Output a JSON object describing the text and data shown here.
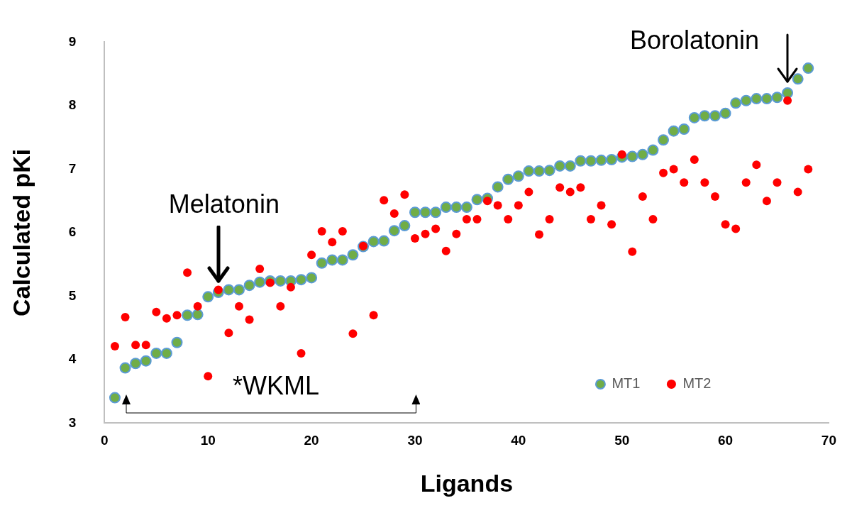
{
  "chart_data": {
    "type": "scatter",
    "xlabel": "Ligands",
    "ylabel": "Calculated pKi",
    "x": [
      1,
      2,
      3,
      4,
      5,
      6,
      7,
      8,
      9,
      10,
      11,
      12,
      13,
      14,
      15,
      16,
      17,
      18,
      19,
      20,
      21,
      22,
      23,
      24,
      25,
      26,
      27,
      28,
      29,
      30,
      31,
      32,
      33,
      34,
      35,
      36,
      37,
      38,
      39,
      40,
      41,
      42,
      43,
      44,
      45,
      46,
      47,
      48,
      49,
      50,
      51,
      52,
      53,
      54,
      55,
      56,
      57,
      58,
      59,
      60,
      61,
      62,
      63,
      64,
      65,
      66,
      67,
      68
    ],
    "series": [
      {
        "name": "MT1",
        "color": "#70ad47",
        "values": [
          3.4,
          3.87,
          3.94,
          3.98,
          4.1,
          4.1,
          4.27,
          4.7,
          4.71,
          4.99,
          5.06,
          5.1,
          5.1,
          5.17,
          5.22,
          5.24,
          5.24,
          5.24,
          5.26,
          5.29,
          5.52,
          5.57,
          5.57,
          5.65,
          5.78,
          5.86,
          5.87,
          6.03,
          6.11,
          6.32,
          6.32,
          6.32,
          6.4,
          6.4,
          6.4,
          6.52,
          6.54,
          6.72,
          6.84,
          6.89,
          6.97,
          6.97,
          6.98,
          7.05,
          7.05,
          7.13,
          7.13,
          7.14,
          7.15,
          7.19,
          7.2,
          7.23,
          7.3,
          7.46,
          7.6,
          7.63,
          7.81,
          7.84,
          7.84,
          7.88,
          8.04,
          8.08,
          8.11,
          8.11,
          8.13,
          8.2,
          8.42,
          8.59
        ]
      },
      {
        "name": "MT2",
        "color": "#ff0000",
        "values": [
          4.21,
          4.67,
          4.23,
          4.23,
          4.75,
          4.65,
          4.7,
          5.37,
          4.84,
          3.74,
          5.1,
          4.42,
          4.84,
          4.63,
          5.43,
          5.21,
          4.84,
          5.14,
          4.1,
          5.65,
          6.02,
          5.85,
          6.02,
          4.41,
          5.79,
          4.7,
          6.51,
          6.3,
          6.6,
          5.91,
          5.98,
          6.06,
          5.71,
          5.98,
          6.21,
          6.21,
          6.5,
          6.43,
          6.21,
          6.43,
          6.64,
          5.97,
          6.21,
          6.71,
          6.64,
          6.71,
          6.21,
          6.43,
          6.13,
          7.23,
          5.7,
          6.57,
          6.21,
          6.94,
          7.0,
          6.79,
          7.15,
          6.79,
          6.57,
          6.13,
          6.06,
          6.79,
          7.07,
          6.5,
          6.79,
          8.08,
          6.64,
          7.0
        ]
      }
    ],
    "xlim": [
      0,
      70
    ],
    "xticks": [
      0,
      10,
      20,
      30,
      40,
      50,
      60,
      70
    ],
    "ylim": [
      3,
      9
    ],
    "yticks": [
      3,
      4,
      5,
      6,
      7,
      8,
      9
    ],
    "grid": false,
    "legend": "bottom right",
    "marker": "circle",
    "annotations": [
      {
        "text": "Melatonin",
        "x": 11,
        "y": 5.06
      },
      {
        "text": "Borolatonin",
        "x": 66,
        "y": 8.2
      },
      "*WKML"
    ]
  }
}
